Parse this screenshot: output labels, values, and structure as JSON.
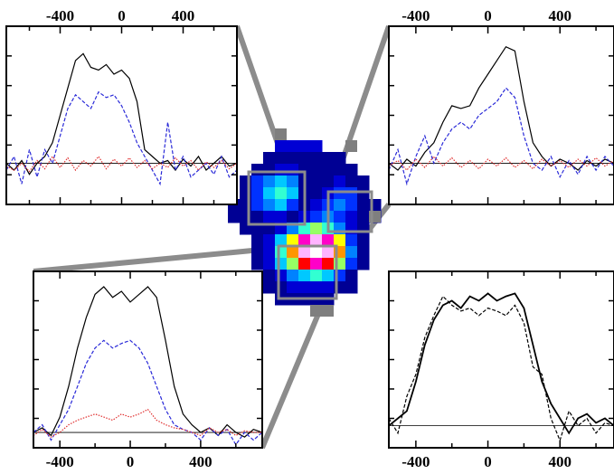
{
  "chart_data": [
    {
      "panel": "upper-left",
      "type": "line",
      "x_ticks": [
        "-400",
        "0",
        "400"
      ],
      "x_tick_values": [
        -400,
        0,
        400
      ],
      "xlim": [
        -750,
        750
      ],
      "ylim": [
        -0.3,
        1.0
      ],
      "series": [
        {
          "style": "solid",
          "color": "#000000",
          "x": [
            -750,
            -700,
            -650,
            -600,
            -550,
            -500,
            -450,
            -400,
            -350,
            -300,
            -250,
            -200,
            -150,
            -100,
            -50,
            0,
            50,
            100,
            150,
            200,
            250,
            300,
            350,
            400,
            450,
            500,
            550,
            600,
            650,
            700,
            750
          ],
          "y": [
            0.0,
            -0.05,
            0.02,
            -0.08,
            0.0,
            0.05,
            0.15,
            0.35,
            0.55,
            0.75,
            0.8,
            0.7,
            0.68,
            0.72,
            0.65,
            0.68,
            0.62,
            0.45,
            0.1,
            0.05,
            0.0,
            0.02,
            -0.05,
            0.03,
            -0.02,
            0.05,
            -0.05,
            0.0,
            0.05,
            -0.02,
            0.0
          ]
        },
        {
          "style": "dashed",
          "color": "#2a2ad8",
          "x": [
            -750,
            -700,
            -650,
            -600,
            -550,
            -500,
            -450,
            -400,
            -350,
            -300,
            -250,
            -200,
            -150,
            -100,
            -50,
            0,
            50,
            100,
            150,
            200,
            250,
            300,
            350,
            400,
            450,
            500,
            550,
            600,
            650,
            700,
            750
          ],
          "y": [
            -0.05,
            0.05,
            -0.15,
            0.1,
            -0.1,
            0.1,
            0.0,
            0.2,
            0.4,
            0.5,
            0.45,
            0.4,
            0.52,
            0.48,
            0.5,
            0.42,
            0.3,
            0.15,
            0.05,
            -0.05,
            -0.15,
            0.3,
            -0.05,
            0.05,
            -0.1,
            -0.05,
            0.0,
            -0.08,
            0.05,
            -0.1,
            -0.05
          ]
        },
        {
          "style": "dotted",
          "color": "#e03030",
          "x": [
            -750,
            -700,
            -650,
            -600,
            -550,
            -500,
            -450,
            -400,
            -350,
            -300,
            -250,
            -200,
            -150,
            -100,
            -50,
            0,
            50,
            100,
            150,
            200,
            250,
            300,
            350,
            400,
            450,
            500,
            550,
            600,
            650,
            700,
            750
          ],
          "y": [
            -0.02,
            -0.05,
            0.0,
            -0.06,
            0.02,
            -0.04,
            0.05,
            -0.03,
            0.04,
            -0.05,
            0.02,
            -0.02,
            0.05,
            -0.04,
            0.03,
            -0.02,
            0.04,
            -0.03,
            0.02,
            -0.04,
            0.0,
            -0.03,
            0.04,
            -0.02,
            0.02,
            -0.05,
            0.01,
            -0.03,
            0.02,
            -0.04,
            0.0
          ]
        }
      ]
    },
    {
      "panel": "upper-right",
      "type": "line",
      "x_ticks": [
        "-400",
        "0",
        "400"
      ],
      "x_tick_values": [
        -400,
        0,
        400
      ],
      "xlim": [
        -550,
        700
      ],
      "ylim": [
        -0.3,
        1.0
      ],
      "series": [
        {
          "style": "solid",
          "color": "#000000",
          "x": [
            -550,
            -500,
            -450,
            -400,
            -350,
            -300,
            -250,
            -200,
            -150,
            -100,
            -50,
            0,
            50,
            100,
            150,
            200,
            250,
            300,
            350,
            400,
            450,
            500,
            550,
            600,
            650,
            700
          ],
          "y": [
            0.0,
            -0.05,
            0.03,
            -0.02,
            0.08,
            0.15,
            0.3,
            0.42,
            0.4,
            0.42,
            0.55,
            0.65,
            0.75,
            0.85,
            0.82,
            0.45,
            0.15,
            0.05,
            -0.02,
            0.03,
            0.0,
            -0.05,
            0.02,
            -0.02,
            0.03,
            0.0
          ]
        },
        {
          "style": "dashed",
          "color": "#2a2ad8",
          "x": [
            -550,
            -500,
            -450,
            -400,
            -350,
            -300,
            -250,
            -200,
            -150,
            -100,
            -50,
            0,
            50,
            100,
            150,
            200,
            250,
            300,
            350,
            400,
            450,
            500,
            550,
            600,
            650,
            700
          ],
          "y": [
            -0.05,
            0.1,
            -0.15,
            0.05,
            0.2,
            0.0,
            0.15,
            0.25,
            0.3,
            0.25,
            0.35,
            0.4,
            0.45,
            0.55,
            0.48,
            0.2,
            0.0,
            -0.05,
            0.05,
            -0.1,
            0.02,
            -0.08,
            0.05,
            -0.05,
            0.05,
            -0.02
          ]
        },
        {
          "style": "dotted",
          "color": "#e03030",
          "x": [
            -550,
            -500,
            -450,
            -400,
            -350,
            -300,
            -250,
            -200,
            -150,
            -100,
            -50,
            0,
            50,
            100,
            150,
            200,
            250,
            300,
            350,
            400,
            450,
            500,
            550,
            600,
            650,
            700
          ],
          "y": [
            -0.02,
            0.02,
            -0.05,
            0.03,
            -0.03,
            0.05,
            -0.02,
            0.04,
            -0.03,
            0.02,
            -0.04,
            0.03,
            -0.02,
            0.04,
            -0.03,
            0.02,
            -0.04,
            0.03,
            -0.02,
            0.02,
            -0.03,
            0.03,
            -0.02,
            0.04,
            -0.02,
            0.02
          ]
        }
      ]
    },
    {
      "panel": "lower-left",
      "type": "line",
      "x_ticks": [
        "-400",
        "0",
        "400"
      ],
      "x_tick_values": [
        -400,
        0,
        400
      ],
      "xlim": [
        -550,
        750
      ],
      "ylim": [
        -0.1,
        1.05
      ],
      "series": [
        {
          "style": "solid",
          "color": "#000000",
          "x": [
            -550,
            -500,
            -450,
            -400,
            -350,
            -300,
            -250,
            -200,
            -150,
            -100,
            -50,
            0,
            50,
            100,
            150,
            200,
            250,
            300,
            350,
            400,
            450,
            500,
            550,
            600,
            650,
            700,
            750
          ],
          "y": [
            0.0,
            0.03,
            -0.02,
            0.1,
            0.3,
            0.55,
            0.75,
            0.9,
            0.95,
            0.88,
            0.92,
            0.85,
            0.9,
            0.95,
            0.88,
            0.6,
            0.3,
            0.12,
            0.05,
            0.0,
            0.03,
            -0.02,
            0.05,
            0.0,
            -0.03,
            0.02,
            0.0
          ]
        },
        {
          "style": "dashed",
          "color": "#2a2ad8",
          "x": [
            -550,
            -500,
            -450,
            -400,
            -350,
            -300,
            -250,
            -200,
            -150,
            -100,
            -50,
            0,
            50,
            100,
            150,
            200,
            250,
            300,
            350,
            400,
            450,
            500,
            550,
            600,
            650,
            700,
            750
          ],
          "y": [
            0.0,
            0.05,
            -0.05,
            0.05,
            0.15,
            0.3,
            0.45,
            0.55,
            0.6,
            0.55,
            0.58,
            0.6,
            0.55,
            0.45,
            0.3,
            0.15,
            0.05,
            0.02,
            0.0,
            -0.05,
            0.03,
            -0.02,
            0.02,
            -0.08,
            0.0,
            -0.05,
            0.0
          ]
        },
        {
          "style": "dotted",
          "color": "#e03030",
          "x": [
            -550,
            -500,
            -450,
            -400,
            -350,
            -300,
            -250,
            -200,
            -150,
            -100,
            -50,
            0,
            50,
            100,
            150,
            200,
            250,
            300,
            350,
            400,
            450,
            500,
            550,
            600,
            650,
            700,
            750
          ],
          "y": [
            -0.02,
            0.02,
            -0.03,
            0.0,
            0.05,
            0.08,
            0.1,
            0.12,
            0.1,
            0.08,
            0.12,
            0.1,
            0.12,
            0.15,
            0.08,
            0.05,
            0.03,
            0.02,
            0.0,
            -0.02,
            0.03,
            0.0,
            0.02,
            -0.02,
            0.01,
            0.0,
            0.0
          ]
        }
      ]
    },
    {
      "panel": "lower-right",
      "type": "line",
      "x_ticks": [
        "-400",
        "0",
        "400"
      ],
      "x_tick_values": [
        -400,
        0,
        400
      ],
      "xlim": [
        -550,
        700
      ],
      "ylim": [
        -0.15,
        1.05
      ],
      "series": [
        {
          "style": "solid",
          "color": "#000000",
          "x": [
            -550,
            -500,
            -450,
            -400,
            -350,
            -300,
            -250,
            -200,
            -150,
            -100,
            -50,
            0,
            50,
            100,
            150,
            200,
            250,
            300,
            350,
            400,
            450,
            500,
            550,
            600,
            650,
            700
          ],
          "y": [
            0.0,
            0.05,
            0.1,
            0.3,
            0.55,
            0.72,
            0.82,
            0.85,
            0.8,
            0.88,
            0.85,
            0.9,
            0.85,
            0.88,
            0.9,
            0.8,
            0.55,
            0.3,
            0.15,
            0.05,
            -0.05,
            0.05,
            0.08,
            0.02,
            0.05,
            0.0
          ]
        },
        {
          "style": "dashed",
          "color": "#000000",
          "x": [
            -550,
            -500,
            -450,
            -400,
            -350,
            -300,
            -250,
            -200,
            -150,
            -100,
            -50,
            0,
            50,
            100,
            150,
            200,
            250,
            300,
            350,
            400,
            450,
            500,
            550,
            600,
            650,
            700
          ],
          "y": [
            0.05,
            -0.05,
            0.2,
            0.35,
            0.6,
            0.75,
            0.88,
            0.82,
            0.78,
            0.8,
            0.75,
            0.8,
            0.78,
            0.75,
            0.82,
            0.7,
            0.4,
            0.35,
            0.05,
            -0.1,
            0.1,
            0.0,
            0.05,
            -0.05,
            0.02,
            0.0
          ]
        }
      ]
    }
  ],
  "colors": {
    "frame": "#000000",
    "connector": "#8c8c8c",
    "baseline": "#000000",
    "map_outline": "#7f7f7f",
    "map_background": "#ffffff"
  },
  "image": {
    "grid_cols": 13,
    "grid_rows": 14,
    "colormap": [
      "#00005a",
      "#000094",
      "#0000d4",
      "#0032ff",
      "#0082ff",
      "#00c8ff",
      "#32ffd2",
      "#96ff64",
      "#ffff00",
      "#ff9600",
      "#ff0000",
      "#ff00c8",
      "#ffb4ff",
      "#ffffff"
    ],
    "levels": [
      [
        -1,
        -1,
        -1,
        -1,
        2,
        2,
        2,
        2,
        -1,
        -1,
        -1,
        -1,
        -1
      ],
      [
        -1,
        -1,
        -1,
        1,
        1,
        1,
        1,
        1,
        1,
        1,
        -1,
        -1,
        -1
      ],
      [
        -1,
        -1,
        1,
        1,
        2,
        2,
        1,
        1,
        1,
        1,
        1,
        -1,
        -1
      ],
      [
        -1,
        1,
        3,
        4,
        5,
        4,
        1,
        1,
        1,
        2,
        1,
        1,
        -1
      ],
      [
        -1,
        1,
        3,
        5,
        6,
        5,
        1,
        1,
        2,
        3,
        3,
        1,
        -1
      ],
      [
        1,
        1,
        3,
        4,
        5,
        3,
        1,
        2,
        3,
        4,
        3,
        1,
        1
      ],
      [
        1,
        1,
        1,
        2,
        2,
        1,
        2,
        3,
        4,
        3,
        2,
        1,
        1
      ],
      [
        -1,
        1,
        1,
        1,
        2,
        4,
        6,
        7,
        6,
        4,
        2,
        1,
        -1
      ],
      [
        -1,
        -1,
        1,
        2,
        5,
        8,
        11,
        12,
        11,
        8,
        3,
        1,
        -1
      ],
      [
        -1,
        -1,
        1,
        2,
        6,
        9,
        12,
        13,
        12,
        9,
        4,
        1,
        -1
      ],
      [
        -1,
        -1,
        1,
        2,
        5,
        7,
        10,
        11,
        10,
        7,
        3,
        1,
        -1
      ],
      [
        -1,
        -1,
        -1,
        1,
        2,
        4,
        5,
        6,
        5,
        3,
        1,
        -1,
        -1
      ],
      [
        -1,
        -1,
        -1,
        1,
        1,
        2,
        2,
        2,
        2,
        1,
        1,
        -1,
        -1
      ],
      [
        -1,
        -1,
        -1,
        -1,
        1,
        1,
        1,
        1,
        1,
        -1,
        -1,
        -1,
        -1
      ]
    ]
  }
}
